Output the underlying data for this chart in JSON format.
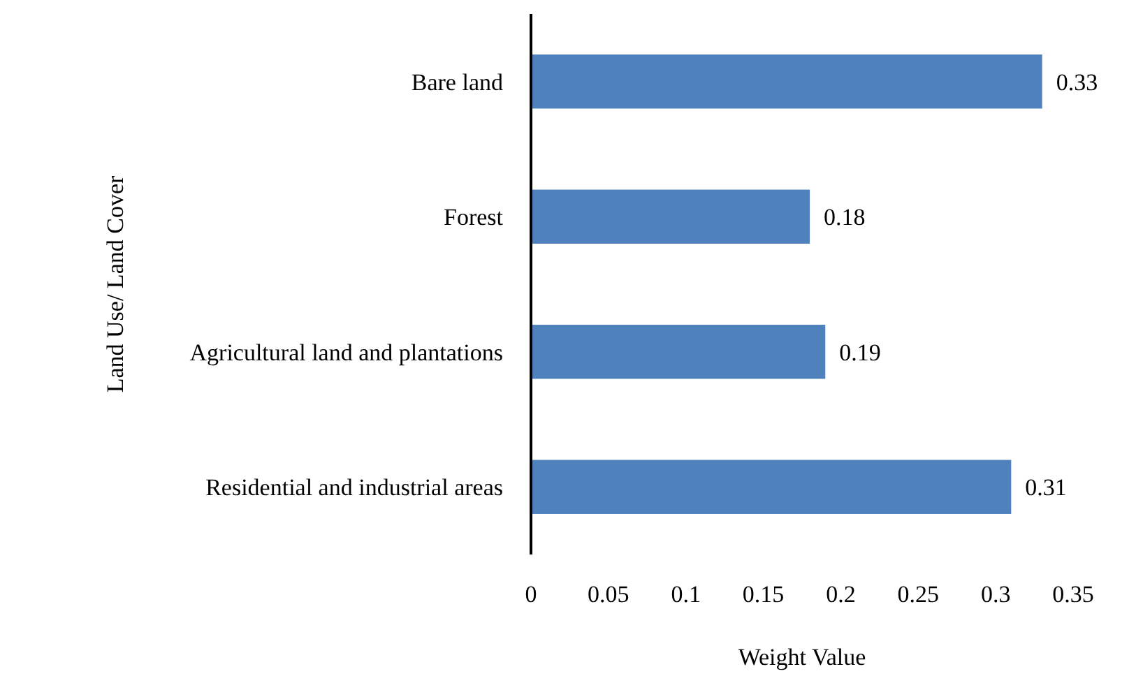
{
  "chart_data": {
    "type": "bar",
    "orientation": "horizontal",
    "xlabel": "Weight Value",
    "ylabel": "Land Use/ Land Cover",
    "categories": [
      "Bare land",
      "Forest",
      "Agricultural land and plantations",
      "Residential and industrial areas"
    ],
    "values": [
      0.33,
      0.18,
      0.19,
      0.31
    ],
    "color": "#4f81bd",
    "xlim": [
      0,
      0.35
    ],
    "xticks": [
      0,
      0.05,
      0.1,
      0.15,
      0.2,
      0.25,
      0.3,
      0.35
    ],
    "data_labels": true,
    "grid": false
  }
}
